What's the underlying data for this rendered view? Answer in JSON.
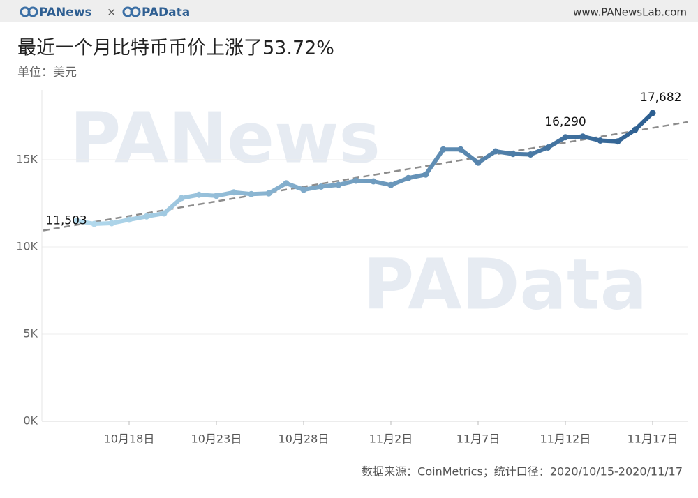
{
  "header": {
    "brand_left": "PANews",
    "brand_sep": "×",
    "brand_right": "PAData",
    "site": "www.PANewsLab.com"
  },
  "watermarks": [
    "PANews",
    "PAData"
  ],
  "chart_data": {
    "type": "line",
    "title": "最近一个月比特币币价上涨了53.72%",
    "subtitle": "单位：美元",
    "source": "数据来源：CoinMetrics；统计口径：2020/10/15-2020/11/17",
    "categories": [
      null,
      null,
      null,
      "10月18日",
      null,
      null,
      null,
      null,
      "10月23日",
      null,
      null,
      null,
      null,
      "10月28日",
      null,
      null,
      null,
      null,
      "11月2日",
      null,
      null,
      null,
      null,
      "11月7日",
      null,
      null,
      null,
      null,
      "11月12日",
      null,
      null,
      null,
      null,
      "11月17日"
    ],
    "values": [
      11503,
      11320,
      11360,
      11560,
      11750,
      11920,
      12800,
      12990,
      12930,
      13130,
      13030,
      13070,
      13650,
      13280,
      13460,
      13560,
      13800,
      13760,
      13550,
      13950,
      14150,
      15590,
      15590,
      14830,
      15480,
      15330,
      15300,
      15700,
      16290,
      16330,
      16100,
      16050,
      16720,
      17682
    ],
    "value_labels": [
      "11,503",
      null,
      null,
      null,
      null,
      null,
      null,
      null,
      null,
      null,
      null,
      null,
      null,
      null,
      null,
      null,
      null,
      null,
      null,
      null,
      null,
      null,
      null,
      null,
      null,
      null,
      null,
      null,
      "16,290",
      null,
      null,
      null,
      null,
      "17,682"
    ],
    "color_range": [
      "#b5dcef",
      "#2c5e90"
    ],
    "trendline": true,
    "trend_color": "#8c8c8c",
    "ylim": [
      0,
      19000
    ],
    "yticks": [
      {
        "value": 0,
        "label": "0K"
      },
      {
        "value": 5000,
        "label": "5K"
      },
      {
        "value": 10000,
        "label": "10K"
      },
      {
        "value": 15000,
        "label": "15K"
      }
    ],
    "grid": true
  }
}
